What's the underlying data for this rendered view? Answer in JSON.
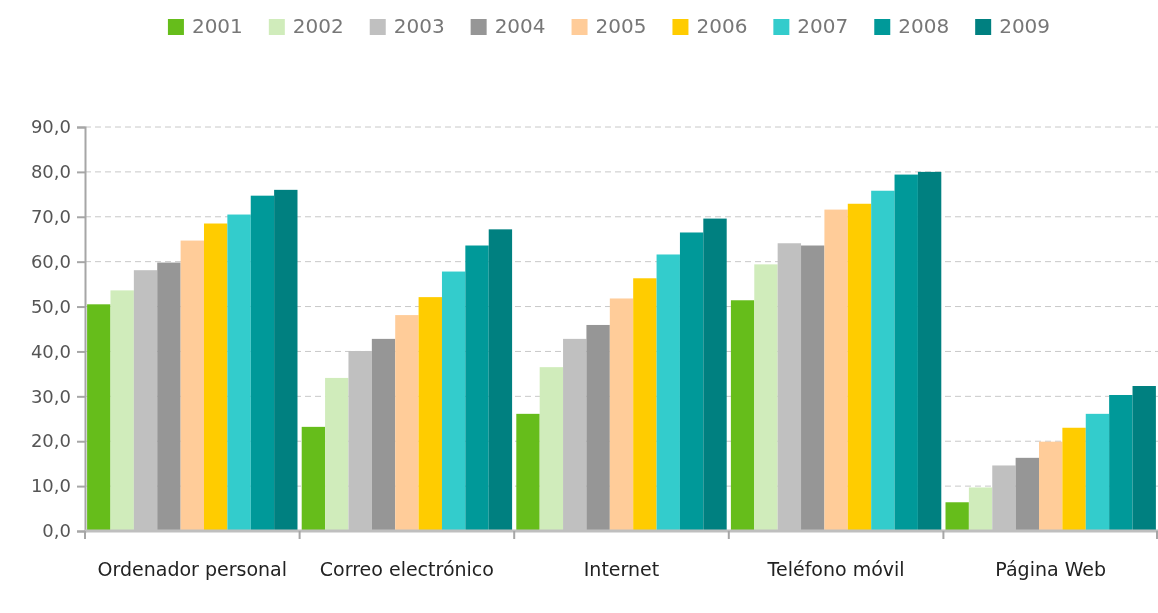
{
  "chart_data": {
    "type": "bar",
    "categories": [
      "Ordenador personal",
      "Correo electrónico",
      "Internet",
      "Teléfono móvil",
      "Página Web"
    ],
    "series": [
      {
        "name": "2001",
        "color": "#66bd1b",
        "values": [
          50.5,
          23.2,
          26.1,
          51.4,
          6.4
        ]
      },
      {
        "name": "2002",
        "color": "#d0ecbb",
        "values": [
          53.6,
          34.1,
          36.5,
          59.4,
          9.7
        ]
      },
      {
        "name": "2003",
        "color": "#c0c0c0",
        "values": [
          58.1,
          40.1,
          42.8,
          64.1,
          14.6
        ]
      },
      {
        "name": "2004",
        "color": "#969696",
        "values": [
          59.8,
          42.8,
          45.9,
          63.6,
          16.3
        ]
      },
      {
        "name": "2005",
        "color": "#ffcc99",
        "values": [
          64.7,
          48.1,
          51.8,
          71.6,
          19.9
        ]
      },
      {
        "name": "2006",
        "color": "#ffcc00",
        "values": [
          68.5,
          52.1,
          56.3,
          72.9,
          23.0
        ]
      },
      {
        "name": "2007",
        "color": "#33cccc",
        "values": [
          70.5,
          57.8,
          61.6,
          75.8,
          26.1
        ]
      },
      {
        "name": "2008",
        "color": "#009999",
        "values": [
          74.7,
          63.6,
          66.5,
          79.4,
          30.3
        ]
      },
      {
        "name": "2009",
        "color": "#008080",
        "values": [
          76.0,
          67.2,
          69.6,
          80.0,
          32.3
        ]
      }
    ],
    "ylim": [
      0,
      90
    ],
    "yticks": [
      {
        "value": 0,
        "label": "0,0"
      },
      {
        "value": 10,
        "label": "10,0"
      },
      {
        "value": 20,
        "label": "20,0"
      },
      {
        "value": 30,
        "label": "30,0"
      },
      {
        "value": 40,
        "label": "40,0"
      },
      {
        "value": 50,
        "label": "50,0"
      },
      {
        "value": 60,
        "label": "60,0"
      },
      {
        "value": 70,
        "label": "70,0"
      },
      {
        "value": 80,
        "label": "80,0"
      },
      {
        "value": 90,
        "label": "90,0"
      }
    ],
    "grid": "y",
    "legend": "top"
  }
}
